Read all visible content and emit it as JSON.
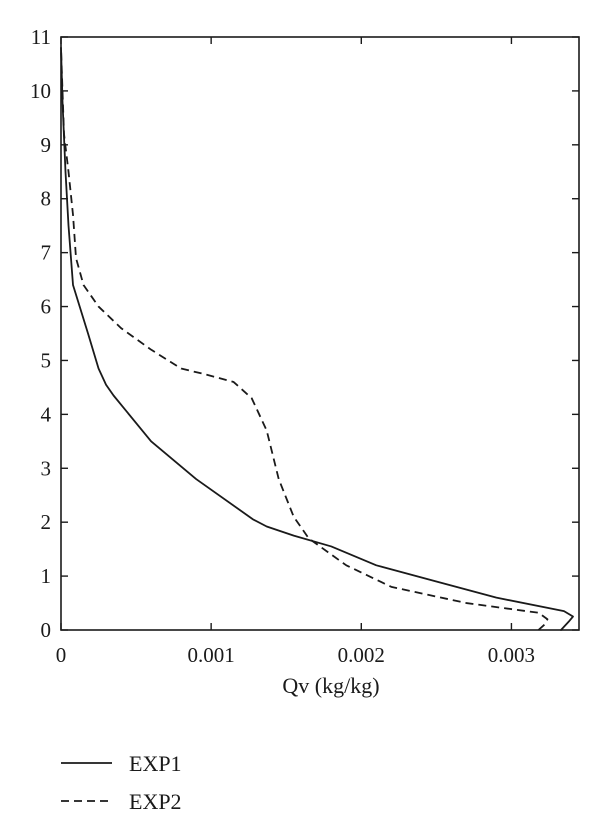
{
  "chart_data": {
    "type": "line",
    "title": "",
    "xlabel": "Qv (kg/kg)",
    "ylabel": "",
    "xlim": [
      0,
      0.00345
    ],
    "ylim": [
      0,
      11
    ],
    "x_ticks": [
      {
        "value": 0,
        "label": "0"
      },
      {
        "value": 0.001,
        "label": "0.001"
      },
      {
        "value": 0.002,
        "label": "0.002"
      },
      {
        "value": 0.003,
        "label": "0.003"
      }
    ],
    "y_ticks": [
      {
        "value": 0,
        "label": "0"
      },
      {
        "value": 1,
        "label": "1"
      },
      {
        "value": 2,
        "label": "2"
      },
      {
        "value": 3,
        "label": "3"
      },
      {
        "value": 4,
        "label": "4"
      },
      {
        "value": 5,
        "label": "5"
      },
      {
        "value": 6,
        "label": "6"
      },
      {
        "value": 7,
        "label": "7"
      },
      {
        "value": 8,
        "label": "8"
      },
      {
        "value": 9,
        "label": "9"
      },
      {
        "value": 10,
        "label": "10"
      },
      {
        "value": 11,
        "label": "11"
      }
    ],
    "grid": false,
    "legend_position": "bottom-left",
    "series": [
      {
        "name": "EXP1",
        "style": "solid",
        "color": "#1a1a1a",
        "points": [
          [
            0.00333,
            0.0
          ],
          [
            0.00338,
            0.15
          ],
          [
            0.00341,
            0.25
          ],
          [
            0.00335,
            0.35
          ],
          [
            0.0029,
            0.6
          ],
          [
            0.0025,
            0.9
          ],
          [
            0.0021,
            1.2
          ],
          [
            0.0018,
            1.55
          ],
          [
            0.00155,
            1.75
          ],
          [
            0.00137,
            1.92
          ],
          [
            0.00128,
            2.05
          ],
          [
            0.0009,
            2.8
          ],
          [
            0.0006,
            3.5
          ],
          [
            0.00035,
            4.35
          ],
          [
            0.0003,
            4.55
          ],
          [
            0.00025,
            4.85
          ],
          [
            0.00018,
            5.5
          ],
          [
            8e-05,
            6.4
          ],
          [
            5e-05,
            7.5
          ],
          [
            3e-05,
            8.5
          ],
          [
            1e-05,
            9.8
          ],
          [
            0.0,
            10.8
          ]
        ]
      },
      {
        "name": "EXP2",
        "style": "dashed",
        "color": "#1a1a1a",
        "points": [
          [
            0.00318,
            0.0
          ],
          [
            0.00322,
            0.1
          ],
          [
            0.00324,
            0.2
          ],
          [
            0.00318,
            0.32
          ],
          [
            0.0027,
            0.5
          ],
          [
            0.0022,
            0.8
          ],
          [
            0.0019,
            1.2
          ],
          [
            0.00165,
            1.7
          ],
          [
            0.00155,
            2.1
          ],
          [
            0.00145,
            2.8
          ],
          [
            0.00137,
            3.7
          ],
          [
            0.00127,
            4.3
          ],
          [
            0.00115,
            4.6
          ],
          [
            0.00095,
            4.75
          ],
          [
            0.0008,
            4.85
          ],
          [
            0.0006,
            5.2
          ],
          [
            0.0004,
            5.6
          ],
          [
            0.00025,
            6.0
          ],
          [
            0.00015,
            6.4
          ],
          [
            0.0001,
            6.9
          ],
          [
            8e-05,
            7.7
          ],
          [
            5e-05,
            8.5
          ],
          [
            2e-05,
            9.2
          ],
          [
            0.0,
            10.8
          ]
        ]
      }
    ]
  }
}
